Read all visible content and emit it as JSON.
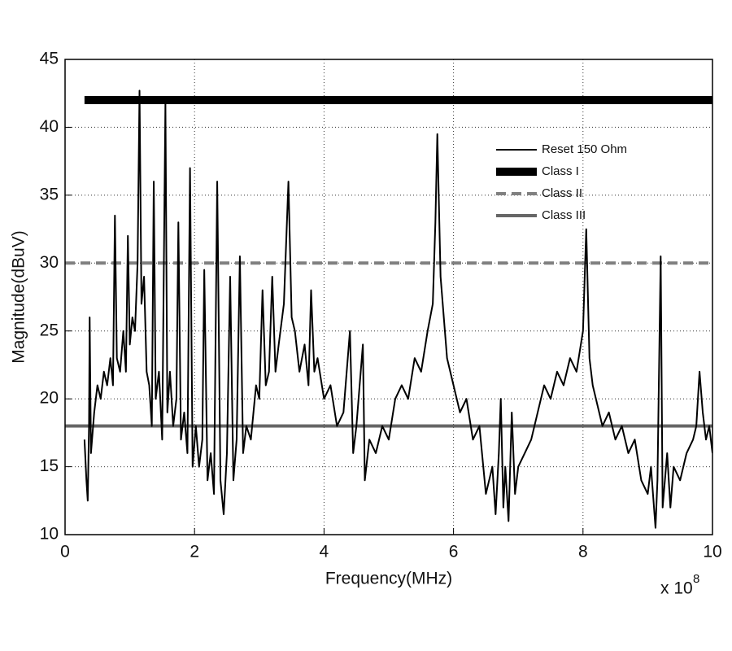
{
  "chart_data": {
    "type": "line",
    "xlabel": "Frequency(MHz)",
    "ylabel": "Magnitude(dBuV)",
    "x_multiplier": {
      "base": "x 10",
      "exponent": "8"
    },
    "xlim": [
      0,
      10
    ],
    "xticks": [
      0,
      2,
      4,
      6,
      8,
      10
    ],
    "ylim": [
      10,
      45
    ],
    "yticks": [
      10,
      15,
      20,
      25,
      30,
      35,
      40,
      45
    ],
    "grid": true,
    "legend": "northeast",
    "series": [
      {
        "name": "Reset 150 Ohm",
        "color": "#000000",
        "line_width": 2,
        "dash": "solid",
        "x": [
          0.3,
          0.33,
          0.35,
          0.37,
          0.38,
          0.4,
          0.45,
          0.5,
          0.55,
          0.6,
          0.65,
          0.7,
          0.74,
          0.77,
          0.8,
          0.85,
          0.9,
          0.94,
          0.97,
          1.0,
          1.04,
          1.08,
          1.12,
          1.15,
          1.18,
          1.22,
          1.26,
          1.3,
          1.34,
          1.37,
          1.4,
          1.45,
          1.5,
          1.55,
          1.58,
          1.62,
          1.67,
          1.72,
          1.75,
          1.79,
          1.84,
          1.89,
          1.93,
          1.97,
          2.02,
          2.07,
          2.12,
          2.15,
          2.2,
          2.25,
          2.3,
          2.35,
          2.4,
          2.45,
          2.5,
          2.55,
          2.6,
          2.65,
          2.7,
          2.75,
          2.8,
          2.87,
          2.95,
          3.0,
          3.05,
          3.1,
          3.15,
          3.2,
          3.25,
          3.3,
          3.38,
          3.45,
          3.5,
          3.55,
          3.62,
          3.7,
          3.76,
          3.8,
          3.85,
          3.9,
          4.0,
          4.1,
          4.2,
          4.3,
          4.4,
          4.45,
          4.5,
          4.6,
          4.63,
          4.7,
          4.8,
          4.9,
          5.0,
          5.1,
          5.2,
          5.3,
          5.4,
          5.5,
          5.6,
          5.68,
          5.72,
          5.75,
          5.8,
          5.85,
          5.9,
          6.0,
          6.1,
          6.2,
          6.3,
          6.4,
          6.5,
          6.6,
          6.65,
          6.7,
          6.73,
          6.77,
          6.8,
          6.85,
          6.9,
          6.95,
          7.0,
          7.1,
          7.2,
          7.3,
          7.4,
          7.5,
          7.6,
          7.7,
          7.8,
          7.9,
          8.0,
          8.05,
          8.1,
          8.15,
          8.2,
          8.3,
          8.4,
          8.5,
          8.6,
          8.7,
          8.8,
          8.9,
          9.0,
          9.05,
          9.12,
          9.15,
          9.2,
          9.23,
          9.3,
          9.35,
          9.4,
          9.5,
          9.6,
          9.7,
          9.75,
          9.8,
          9.85,
          9.9,
          9.95,
          10
        ],
        "values": [
          17,
          14,
          12.5,
          18,
          26,
          16,
          19,
          21,
          20,
          22,
          21,
          23,
          21,
          33.5,
          23,
          22,
          25,
          22,
          32,
          24,
          26,
          25,
          30,
          42.7,
          27,
          29,
          22,
          21,
          18,
          36,
          20,
          22,
          17,
          41.8,
          19,
          22,
          18,
          20,
          33,
          17,
          19,
          16,
          37,
          15,
          18,
          15,
          17,
          29.5,
          14,
          16,
          13,
          36,
          14,
          11.5,
          16,
          29,
          14,
          17,
          30.5,
          16,
          18,
          17,
          21,
          20,
          28,
          21,
          22,
          29,
          22,
          24,
          27,
          36,
          26,
          25,
          22,
          24,
          21,
          28,
          22,
          23,
          20,
          21,
          18,
          19,
          25,
          16,
          18,
          24,
          14,
          17,
          16,
          18,
          17,
          20,
          21,
          20,
          23,
          22,
          25,
          27,
          33,
          39.5,
          29,
          26,
          23,
          21,
          19,
          20,
          17,
          18,
          13,
          15,
          11.5,
          16,
          20,
          12,
          15,
          11,
          19,
          13,
          15,
          16,
          17,
          19,
          21,
          20,
          22,
          21,
          23,
          22,
          25,
          32.5,
          23,
          21,
          20,
          18,
          19,
          17,
          18,
          16,
          17,
          14,
          13,
          15,
          10.5,
          14,
          30.5,
          12,
          16,
          12,
          15,
          14,
          16,
          17,
          18,
          22,
          19,
          17,
          18,
          16
        ]
      },
      {
        "name": "Class I",
        "color": "#000000",
        "line_width": 10,
        "dash": "solid",
        "x": [
          0.3,
          10
        ],
        "values": [
          42,
          42
        ]
      },
      {
        "name": "Class II",
        "color": "#808080",
        "line_width": 4,
        "dash": "dashed",
        "x": [
          0,
          10
        ],
        "values": [
          30,
          30
        ]
      },
      {
        "name": "Class III",
        "color": "#666666",
        "line_width": 4,
        "dash": "solid",
        "x": [
          0,
          10
        ],
        "values": [
          18,
          18
        ]
      }
    ]
  }
}
